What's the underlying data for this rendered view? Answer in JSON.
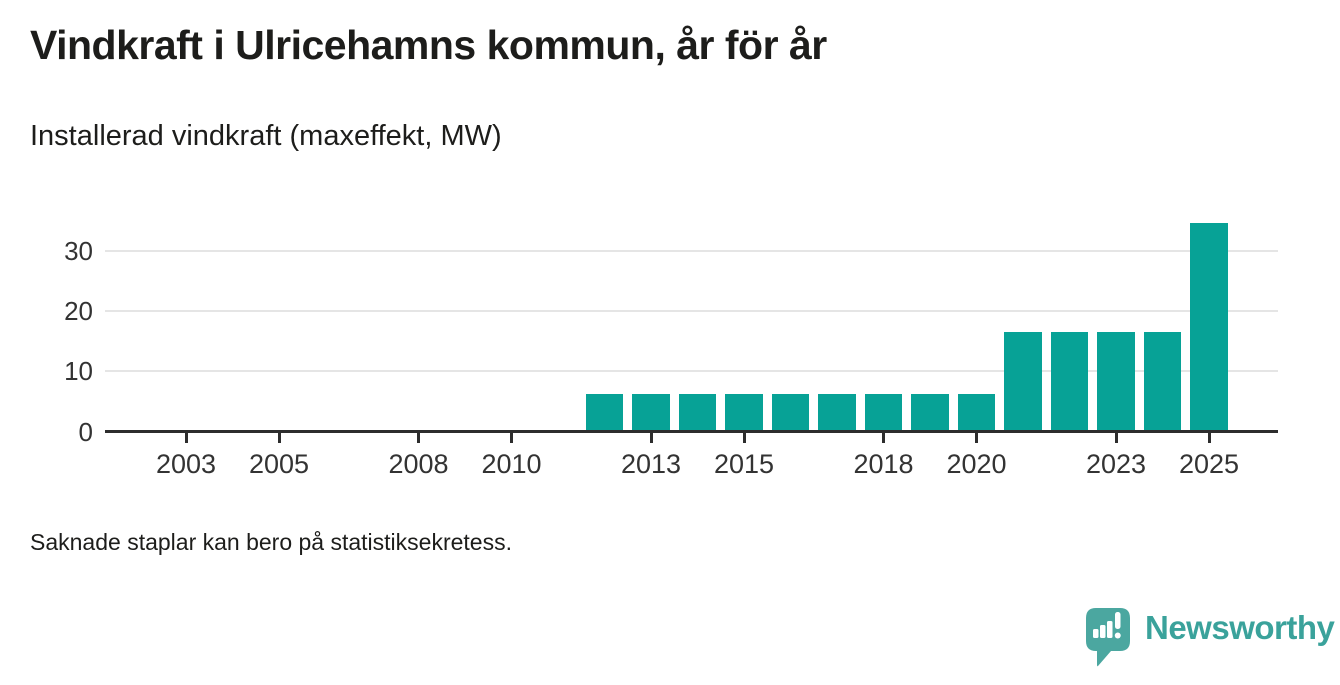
{
  "header": {
    "title": "Vindkraft i Ulricehamns kommun, år för år",
    "subtitle": "Installerad vindkraft (maxeffekt, MW)"
  },
  "footer": {
    "note": "Saknade staplar kan bero på statistiksekretess.",
    "brand": "Newsworthy",
    "logo_icon": "speech-bubble-with-mini-bar-chart-and-exclamation"
  },
  "colors": {
    "bar": "#07a296",
    "axis": "#2d2d2d",
    "grid": "#e5e5e5",
    "tick_label": "#333333",
    "text": "#1d1d1b",
    "brand_icon": "#4ba7a0",
    "brand_text": "#3aa29b",
    "background": "#ffffff"
  },
  "chart_data": {
    "type": "bar",
    "title": "Vindkraft i Ulricehamns kommun, år för år",
    "subtitle": "Installerad vindkraft (maxeffekt, MW)",
    "unit": "MW",
    "xlabel": "",
    "ylabel": "Installerad vindkraft (maxeffekt, MW)",
    "y_ticks": [
      0,
      10,
      20,
      30
    ],
    "ylim": [
      0,
      36
    ],
    "x_domain": [
      2002,
      2026
    ],
    "x_tick_years": [
      2003,
      2005,
      2008,
      2010,
      2013,
      2015,
      2018,
      2020,
      2023,
      2025
    ],
    "grid": "horizontal-only",
    "legend_position": "none",
    "years_without_bars": [
      2002,
      2003,
      2004,
      2005,
      2006,
      2007,
      2008,
      2009,
      2010,
      2011
    ],
    "points": [
      {
        "year": 2012,
        "value": 6.2
      },
      {
        "year": 2013,
        "value": 6.2
      },
      {
        "year": 2014,
        "value": 6.2
      },
      {
        "year": 2015,
        "value": 6.2
      },
      {
        "year": 2016,
        "value": 6.2
      },
      {
        "year": 2017,
        "value": 6.2
      },
      {
        "year": 2018,
        "value": 6.2
      },
      {
        "year": 2019,
        "value": 6.2
      },
      {
        "year": 2020,
        "value": 6.2
      },
      {
        "year": 2021,
        "value": 16.5
      },
      {
        "year": 2022,
        "value": 16.5
      },
      {
        "year": 2023,
        "value": 16.5
      },
      {
        "year": 2024,
        "value": 16.5
      },
      {
        "year": 2025,
        "value": 34.5
      }
    ]
  }
}
